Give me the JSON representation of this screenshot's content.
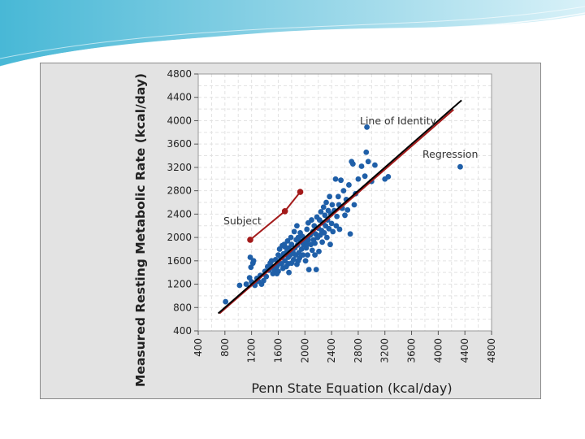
{
  "chart_data": {
    "type": "scatter",
    "title": "",
    "xlabel": "Penn State Equation (kcal/day)",
    "ylabel": "Measured Resting Metabolic Rate (kcal/day)",
    "xlim": [
      400,
      4800
    ],
    "ylim": [
      400,
      4800
    ],
    "x_ticks": [
      "400",
      "800",
      "1200",
      "1600",
      "2000",
      "2400",
      "2800",
      "3200",
      "3600",
      "4000",
      "4400",
      "4800"
    ],
    "y_ticks": [
      "400",
      "800",
      "1200",
      "1600",
      "2000",
      "2400",
      "2800",
      "3200",
      "3600",
      "4000",
      "4400",
      "4800"
    ],
    "grid": true,
    "colors": {
      "points": "#1f5fa8",
      "identity_line": "#000000",
      "regression_line": "#a31a1a",
      "subject": "#a31a1a"
    },
    "annotations": {
      "identity": "Line of Identity",
      "regression": "Regression",
      "subject": "Subject"
    },
    "identity_line": {
      "x": [
        700,
        4350
      ],
      "y": [
        700,
        4350
      ]
    },
    "regression_line": {
      "x": [
        720,
        4230
      ],
      "y": [
        700,
        4190
      ]
    },
    "subject_series": {
      "x": [
        1180,
        1700,
        1930
      ],
      "y": [
        1960,
        2450,
        2780
      ]
    },
    "points": [
      [
        810,
        900
      ],
      [
        1020,
        1180
      ],
      [
        1120,
        1200
      ],
      [
        1170,
        1310
      ],
      [
        1180,
        1660
      ],
      [
        1190,
        1490
      ],
      [
        1200,
        1240
      ],
      [
        1220,
        1560
      ],
      [
        1230,
        1600
      ],
      [
        1250,
        1180
      ],
      [
        1280,
        1300
      ],
      [
        1300,
        1250
      ],
      [
        1330,
        1350
      ],
      [
        1350,
        1200
      ],
      [
        1380,
        1260
      ],
      [
        1400,
        1420
      ],
      [
        1420,
        1330
      ],
      [
        1440,
        1500
      ],
      [
        1460,
        1440
      ],
      [
        1480,
        1560
      ],
      [
        1500,
        1600
      ],
      [
        1500,
        1500
      ],
      [
        1520,
        1380
      ],
      [
        1540,
        1450
      ],
      [
        1560,
        1620
      ],
      [
        1580,
        1500
      ],
      [
        1600,
        1700
      ],
      [
        1600,
        1540
      ],
      [
        1600,
        1420
      ],
      [
        1620,
        1800
      ],
      [
        1640,
        1650
      ],
      [
        1650,
        1550
      ],
      [
        1660,
        1860
      ],
      [
        1670,
        1470
      ],
      [
        1680,
        1720
      ],
      [
        1700,
        1600
      ],
      [
        1700,
        1840
      ],
      [
        1720,
        1500
      ],
      [
        1730,
        1760
      ],
      [
        1740,
        1940
      ],
      [
        1750,
        1660
      ],
      [
        1760,
        1400
      ],
      [
        1760,
        1820
      ],
      [
        1780,
        1700
      ],
      [
        1790,
        2000
      ],
      [
        1800,
        1560
      ],
      [
        1800,
        1880
      ],
      [
        1820,
        1750
      ],
      [
        1830,
        1620
      ],
      [
        1840,
        2100
      ],
      [
        1850,
        1820
      ],
      [
        1860,
        1700
      ],
      [
        1870,
        1960
      ],
      [
        1880,
        1540
      ],
      [
        1890,
        1870
      ],
      [
        1900,
        2000
      ],
      [
        1910,
        1740
      ],
      [
        1920,
        1650
      ],
      [
        1930,
        2080
      ],
      [
        1940,
        1930
      ],
      [
        1950,
        1800
      ],
      [
        1960,
        2020
      ],
      [
        1970,
        1700
      ],
      [
        1980,
        1880
      ],
      [
        2000,
        1960
      ],
      [
        2010,
        1600
      ],
      [
        2020,
        1820
      ],
      [
        2030,
        2140
      ],
      [
        2040,
        1700
      ],
      [
        2050,
        1960
      ],
      [
        2060,
        1450
      ],
      [
        2080,
        2040
      ],
      [
        2090,
        1880
      ],
      [
        2100,
        2300
      ],
      [
        2110,
        1780
      ],
      [
        2120,
        2100
      ],
      [
        2130,
        1960
      ],
      [
        2140,
        2200
      ],
      [
        2150,
        1900
      ],
      [
        2160,
        2060
      ],
      [
        2170,
        1450
      ],
      [
        2180,
        2350
      ],
      [
        2190,
        2000
      ],
      [
        2200,
        2160
      ],
      [
        2210,
        1760
      ],
      [
        2220,
        2300
      ],
      [
        2230,
        2040
      ],
      [
        2240,
        2440
      ],
      [
        2250,
        2120
      ],
      [
        2260,
        1920
      ],
      [
        2270,
        2250
      ],
      [
        2280,
        2520
      ],
      [
        2290,
        2080
      ],
      [
        2300,
        2380
      ],
      [
        2310,
        2200
      ],
      [
        2320,
        2600
      ],
      [
        2330,
        2000
      ],
      [
        2340,
        2300
      ],
      [
        2350,
        2460
      ],
      [
        2360,
        2150
      ],
      [
        2370,
        2700
      ],
      [
        2380,
        1880
      ],
      [
        2390,
        2400
      ],
      [
        2400,
        2240
      ],
      [
        2410,
        2560
      ],
      [
        2420,
        2100
      ],
      [
        2440,
        2460
      ],
      [
        2460,
        3000
      ],
      [
        2470,
        2200
      ],
      [
        2480,
        2360
      ],
      [
        2500,
        2700
      ],
      [
        2510,
        2560
      ],
      [
        2520,
        2140
      ],
      [
        2540,
        2980
      ],
      [
        2560,
        2500
      ],
      [
        2580,
        2800
      ],
      [
        2600,
        2380
      ],
      [
        2620,
        2650
      ],
      [
        2640,
        2470
      ],
      [
        2660,
        2900
      ],
      [
        2680,
        2060
      ],
      [
        2700,
        3300
      ],
      [
        2720,
        3260
      ],
      [
        2740,
        2560
      ],
      [
        2760,
        2750
      ],
      [
        2800,
        3000
      ],
      [
        2850,
        3220
      ],
      [
        2900,
        3050
      ],
      [
        2920,
        3460
      ],
      [
        2930,
        3890
      ],
      [
        2950,
        3300
      ],
      [
        3000,
        2960
      ],
      [
        3050,
        3240
      ],
      [
        3200,
        3000
      ],
      [
        3250,
        3040
      ],
      [
        4330,
        3210
      ],
      [
        1750,
        1550
      ],
      [
        1690,
        1880
      ],
      [
        1900,
        1600
      ],
      [
        2050,
        2250
      ],
      [
        2150,
        1700
      ],
      [
        1580,
        1380
      ],
      [
        1880,
        2200
      ],
      [
        2030,
        1880
      ]
    ]
  }
}
